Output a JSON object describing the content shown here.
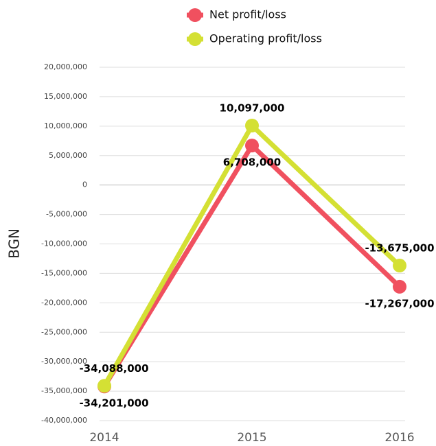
{
  "chart_data": {
    "type": "line",
    "y_label": "BGN",
    "categories": [
      "2014",
      "2015",
      "2016"
    ],
    "series": [
      {
        "name": "Net profit/loss",
        "color": "#f0505f",
        "values": [
          -34201000,
          6708000,
          -17267000
        ],
        "value_labels": [
          "-34,201,000",
          "6,708,000",
          "-17,267,000"
        ]
      },
      {
        "name": "Operating profit/loss",
        "color": "#d4e034",
        "values": [
          -34088000,
          10097000,
          -13675000
        ],
        "value_labels": [
          "-34,088,000",
          "10,097,000",
          "-13,675,000"
        ]
      }
    ],
    "ylim": [
      -40000000,
      20000000
    ],
    "yticks": [
      {
        "value": -40000000,
        "label": "-40,000,000"
      },
      {
        "value": -35000000,
        "label": "-35,000,000"
      },
      {
        "value": -30000000,
        "label": "-30,000,000"
      },
      {
        "value": -25000000,
        "label": "-25,000,000"
      },
      {
        "value": -20000000,
        "label": "-20,000,000"
      },
      {
        "value": -15000000,
        "label": "-15,000,000"
      },
      {
        "value": -10000000,
        "label": "-10,000,000"
      },
      {
        "value": -5000000,
        "label": "-5,000,000"
      },
      0,
      {
        "value": 5000000,
        "label": "5,000,000"
      },
      {
        "value": 10000000,
        "label": "10,000,000"
      },
      {
        "value": 15000000,
        "label": "15,000,000"
      },
      {
        "value": 20000000,
        "label": "20,000,000"
      }
    ],
    "grid": true
  }
}
